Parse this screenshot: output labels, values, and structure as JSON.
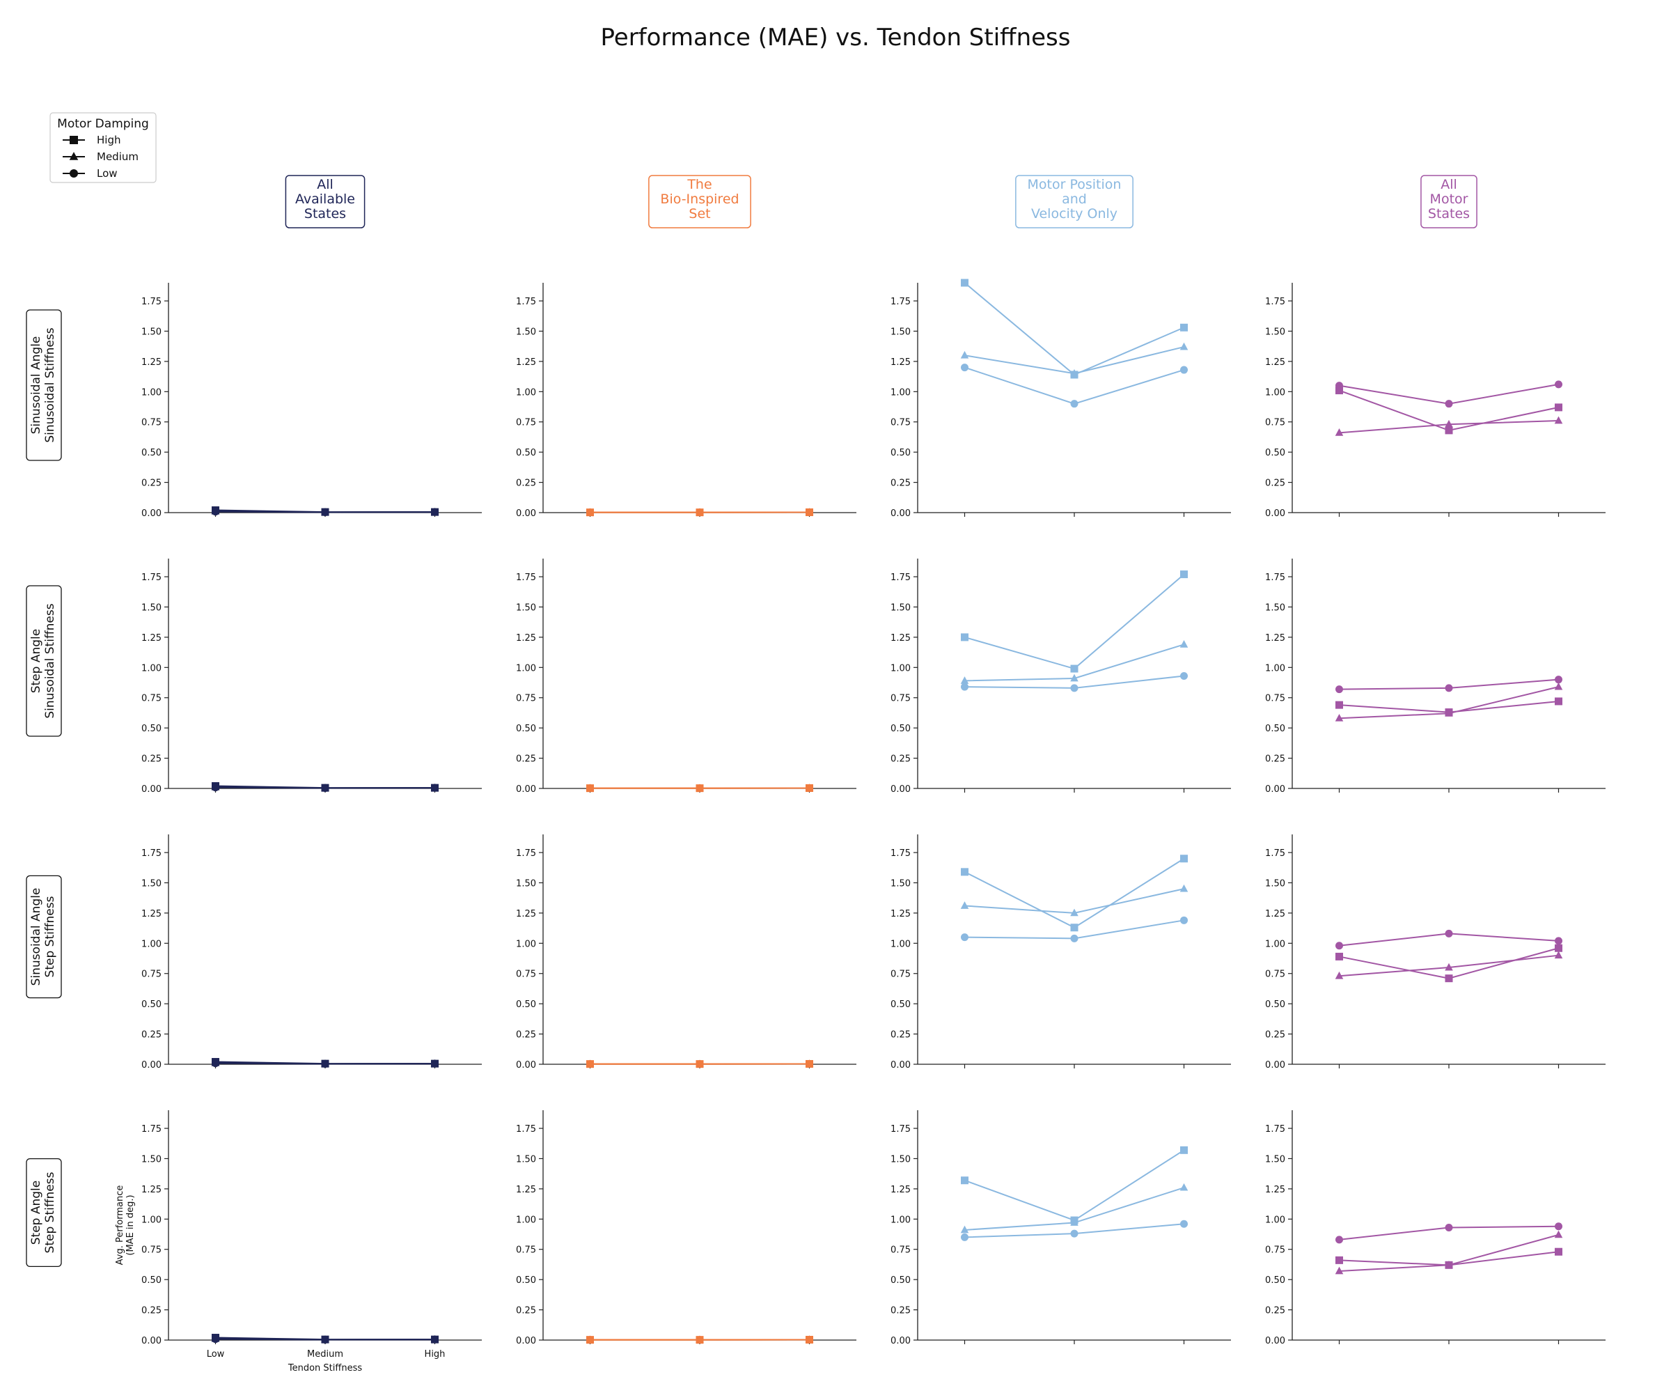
{
  "title": "Performance (MAE) vs. Tendon Stiffness",
  "legend": {
    "title": "Motor Damping",
    "placement": "top-left",
    "entries": [
      {
        "label": "High",
        "marker": "square"
      },
      {
        "label": "Medium",
        "marker": "triangle"
      },
      {
        "label": "Low",
        "marker": "circle"
      }
    ]
  },
  "columns": [
    {
      "label_lines": [
        "All",
        "Available",
        "States"
      ],
      "color": "#1f2557"
    },
    {
      "label_lines": [
        "The",
        "Bio-Inspired",
        "Set"
      ],
      "color": "#f07b3f"
    },
    {
      "label_lines": [
        "Motor Position",
        "and",
        "Velocity Only"
      ],
      "color": "#8ab8e0"
    },
    {
      "label_lines": [
        "All",
        "Motor",
        "States"
      ],
      "color": "#a256a4"
    }
  ],
  "rows": [
    {
      "label_lines": [
        "Sinusoidal Angle",
        "Sinusoidal Stiffness"
      ]
    },
    {
      "label_lines": [
        "Step Angle",
        "Sinusoidal Stiffness"
      ]
    },
    {
      "label_lines": [
        "Sinusoidal Angle",
        "Step Stiffness"
      ]
    },
    {
      "label_lines": [
        "Step Angle",
        "Step Stiffness"
      ]
    }
  ],
  "axes": {
    "ylabel_lines": [
      "Avg. Performance",
      "(MAE in deg.)"
    ],
    "xlabel": "Tendon Stiffness",
    "x_tick_labels": [
      "Low",
      "Medium",
      "High"
    ],
    "y_ticks": [
      "0.00",
      "0.25",
      "0.50",
      "0.75",
      "1.00",
      "1.25",
      "1.50",
      "1.75"
    ]
  },
  "chart_data": {
    "type": "line",
    "categories": [
      "Low",
      "Medium",
      "High"
    ],
    "ylim": [
      0,
      1.9
    ],
    "grid": false,
    "series_order": [
      "High",
      "Medium",
      "Low"
    ],
    "panels": [
      [
        {
          "High": [
            0.02,
            0.005,
            0.005
          ],
          "Medium": [
            0.01,
            0.003,
            0.004
          ],
          "Low": [
            0.008,
            0.003,
            0.005
          ]
        },
        {
          "High": [
            0.002,
            0.002,
            0.003
          ],
          "Medium": [
            0.002,
            0.002,
            0.003
          ],
          "Low": [
            0.002,
            0.002,
            0.003
          ]
        },
        {
          "High": [
            1.9,
            1.14,
            1.53
          ],
          "Medium": [
            1.3,
            1.15,
            1.37
          ],
          "Low": [
            1.2,
            0.9,
            1.18
          ]
        },
        {
          "High": [
            1.01,
            0.68,
            0.87
          ],
          "Medium": [
            0.66,
            0.73,
            0.76
          ],
          "Low": [
            1.05,
            0.9,
            1.06
          ]
        }
      ],
      [
        {
          "High": [
            0.02,
            0.005,
            0.005
          ],
          "Medium": [
            0.01,
            0.003,
            0.004
          ],
          "Low": [
            0.008,
            0.003,
            0.005
          ]
        },
        {
          "High": [
            0.002,
            0.002,
            0.003
          ],
          "Medium": [
            0.002,
            0.002,
            0.003
          ],
          "Low": [
            0.002,
            0.002,
            0.003
          ]
        },
        {
          "High": [
            1.25,
            0.99,
            1.77
          ],
          "Medium": [
            0.89,
            0.91,
            1.19
          ],
          "Low": [
            0.84,
            0.83,
            0.93
          ]
        },
        {
          "High": [
            0.69,
            0.63,
            0.72
          ],
          "Medium": [
            0.58,
            0.62,
            0.84
          ],
          "Low": [
            0.82,
            0.83,
            0.9
          ]
        }
      ],
      [
        {
          "High": [
            0.02,
            0.005,
            0.005
          ],
          "Medium": [
            0.01,
            0.003,
            0.004
          ],
          "Low": [
            0.008,
            0.003,
            0.005
          ]
        },
        {
          "High": [
            0.002,
            0.002,
            0.003
          ],
          "Medium": [
            0.002,
            0.002,
            0.003
          ],
          "Low": [
            0.002,
            0.002,
            0.003
          ]
        },
        {
          "High": [
            1.59,
            1.13,
            1.7
          ],
          "Medium": [
            1.31,
            1.25,
            1.45
          ],
          "Low": [
            1.05,
            1.04,
            1.19
          ]
        },
        {
          "High": [
            0.89,
            0.71,
            0.96
          ],
          "Medium": [
            0.73,
            0.8,
            0.9
          ],
          "Low": [
            0.98,
            1.08,
            1.02
          ]
        }
      ],
      [
        {
          "High": [
            0.02,
            0.005,
            0.005
          ],
          "Medium": [
            0.01,
            0.003,
            0.004
          ],
          "Low": [
            0.008,
            0.003,
            0.005
          ]
        },
        {
          "High": [
            0.002,
            0.002,
            0.003
          ],
          "Medium": [
            0.002,
            0.002,
            0.003
          ],
          "Low": [
            0.002,
            0.002,
            0.003
          ]
        },
        {
          "High": [
            1.32,
            0.99,
            1.57
          ],
          "Medium": [
            0.91,
            0.97,
            1.26
          ],
          "Low": [
            0.85,
            0.88,
            0.96
          ]
        },
        {
          "High": [
            0.66,
            0.62,
            0.73
          ],
          "Medium": [
            0.57,
            0.62,
            0.87
          ],
          "Low": [
            0.83,
            0.93,
            0.94
          ]
        }
      ]
    ]
  }
}
